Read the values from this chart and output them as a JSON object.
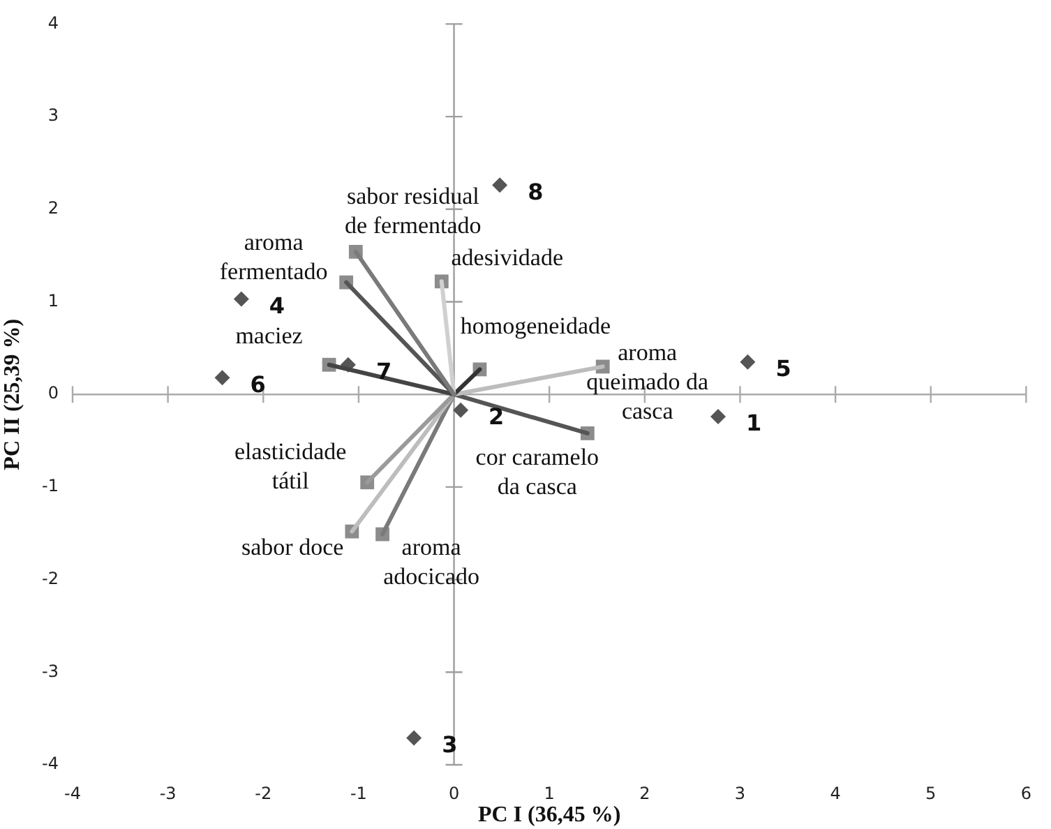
{
  "chart_data": {
    "type": "scatter",
    "xlabel": "PC I (36,45 %)",
    "ylabel": "PC II (25,39 %)",
    "xlim": [
      -4,
      6
    ],
    "xticks": [
      -4,
      -3,
      -2,
      -1,
      0,
      1,
      2,
      3,
      4,
      5,
      6
    ],
    "ylim": [
      -4,
      4
    ],
    "yticks": [
      -4,
      -3,
      -2,
      -1,
      0,
      1,
      2,
      3,
      4
    ],
    "legend": false,
    "ref_lines": [
      {
        "axis": "y",
        "value": 0,
        "color": "#aaaaaa"
      },
      {
        "axis": "x",
        "value": 0,
        "color": "#9e9e9e"
      }
    ],
    "annotations": [
      {
        "text": "1",
        "x": 2.77,
        "y": -0.24
      },
      {
        "text": "2",
        "x": 0.07,
        "y": -0.17
      },
      {
        "text": "3",
        "x": -0.42,
        "y": -3.71
      },
      {
        "text": "4",
        "x": -2.23,
        "y": 1.03
      },
      {
        "text": "5",
        "x": 3.08,
        "y": 0.35
      },
      {
        "text": "6",
        "x": -2.43,
        "y": 0.18
      },
      {
        "text": "7",
        "x": -1.11,
        "y": 0.32
      },
      {
        "text": "8",
        "x": 0.48,
        "y": 2.26
      }
    ],
    "series": [
      {
        "type": "line",
        "color": "#7a7a7a",
        "x": [
          0,
          -1.03
        ],
        "values": [
          0,
          1.54
        ]
      },
      {
        "type": "line",
        "color": "#555555",
        "x": [
          0,
          -1.13
        ],
        "values": [
          0,
          1.21
        ]
      },
      {
        "type": "line",
        "color": "#d0d0d0",
        "x": [
          0,
          -0.13
        ],
        "values": [
          0,
          1.22
        ]
      },
      {
        "type": "line",
        "color": "#333333",
        "x": [
          0,
          0.27
        ],
        "values": [
          0,
          0.27
        ]
      },
      {
        "type": "line",
        "color": "#bdbdbd",
        "x": [
          0,
          1.56
        ],
        "values": [
          0,
          0.3
        ]
      },
      {
        "type": "line",
        "color": "#444444",
        "x": [
          0,
          -1.31
        ],
        "values": [
          0,
          0.32
        ]
      },
      {
        "type": "line",
        "color": "#555555",
        "x": [
          0,
          1.4
        ],
        "values": [
          0,
          -0.42
        ]
      },
      {
        "type": "line",
        "color": "#9a9a9a",
        "x": [
          0,
          -0.91
        ],
        "values": [
          0,
          -0.95
        ]
      },
      {
        "type": "line",
        "color": "#bdbdbd",
        "x": [
          0,
          -1.07
        ],
        "values": [
          0,
          -1.48
        ]
      },
      {
        "type": "line",
        "color": "#7a7a7a",
        "x": [
          0,
          -0.75
        ],
        "values": [
          0,
          -1.51
        ]
      },
      {
        "marker": "square",
        "color": "#8c8c8c",
        "x": [
          -1.03,
          -1.13,
          -0.13,
          0.27,
          1.56,
          -1.31,
          1.4,
          -0.91,
          -1.07,
          -0.75
        ],
        "values": [
          1.54,
          1.21,
          1.22,
          0.27,
          0.3,
          0.32,
          -0.42,
          -0.95,
          -1.48,
          -1.51
        ],
        "value_labels": [
          "sabor residual de fermentado",
          "aroma fermentado",
          "adesividade",
          "homogeneidade",
          "aroma queimado da casca",
          "maciez",
          "cor caramelo da casca",
          "elasticidade tátil",
          "sabor doce",
          "aroma adocicado"
        ]
      },
      {
        "marker": "diamond",
        "color": "#555555",
        "x": [
          2.77,
          0.07,
          -0.42,
          -2.23,
          3.08,
          -2.43,
          -1.11,
          0.48
        ],
        "values": [
          -0.24,
          -0.17,
          -3.71,
          1.03,
          0.35,
          0.18,
          0.32,
          2.26
        ]
      }
    ]
  }
}
